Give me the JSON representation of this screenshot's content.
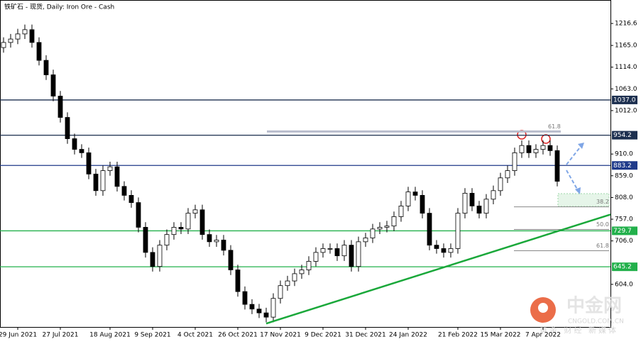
{
  "chart_data": {
    "type": "candlestick",
    "title": "铁矿石 - 现货, Daily:  Iron Ore - Cash",
    "ylim": [
      503.9,
      1271.7
    ],
    "yticks": [
      1216.6,
      {
        "value": 1165,
        "label": "1165.0"
      },
      {
        "value": 1114,
        "label": "1114.0"
      },
      {
        "value": 1063,
        "label": "1063.0"
      },
      {
        "value": 1012,
        "label": "1012.0"
      },
      {
        "value": 910,
        "label": "910.0"
      },
      {
        "value": 859,
        "label": "859.0"
      },
      {
        "value": 808,
        "label": "808.0"
      },
      {
        "value": 757,
        "label": "757.0"
      },
      {
        "value": 706,
        "label": "706.0"
      },
      {
        "value": 604,
        "label": "604.0"
      }
    ],
    "xticks": [
      {
        "value": 2,
        "label": "29 Jun 2021"
      },
      {
        "value": 8,
        "label": "27 Jul 2021"
      },
      {
        "value": 15,
        "label": "18 Aug 2021"
      },
      {
        "value": 21,
        "label": "9 Sep 2021"
      },
      {
        "value": 27,
        "label": "4 Oct 2021"
      },
      {
        "value": 33,
        "label": "26 Oct 2021"
      },
      {
        "value": 39,
        "label": "17 Nov 2021"
      },
      {
        "value": 45,
        "label": "9 Dec 2021"
      },
      {
        "value": 51,
        "label": "31 Dec 2021"
      },
      {
        "value": 57,
        "label": "24 Jan 2022"
      },
      {
        "value": 64,
        "label": "21 Feb 2022"
      },
      {
        "value": 70,
        "label": "15 Mar 2022"
      },
      {
        "value": 76,
        "label": "7 Apr 2022"
      }
    ],
    "open": [
      1160,
      1172,
      1180,
      1192,
      1202,
      1172,
      1130,
      1096,
      1046,
      996,
      946,
      921,
      913,
      863,
      824,
      871,
      880,
      834,
      813,
      796,
      738,
      679,
      646,
      696,
      721,
      738,
      734,
      771,
      779,
      721,
      704,
      708,
      684,
      638,
      587,
      557,
      546,
      537,
      527,
      571,
      601,
      612,
      629,
      638,
      658,
      679,
      688,
      688,
      671,
      696,
      646,
      704,
      713,
      734,
      738,
      741,
      763,
      788,
      821,
      813,
      771,
      696,
      688,
      679,
      688,
      771,
      818,
      788,
      771,
      804,
      824,
      854,
      871,
      913,
      930,
      913,
      921,
      930,
      918
    ],
    "high": [
      1184,
      1192,
      1204,
      1214,
      1214,
      1184,
      1142,
      1108,
      1058,
      1008,
      958,
      933,
      925,
      875,
      883,
      892,
      892,
      846,
      825,
      808,
      750,
      691,
      708,
      733,
      750,
      750,
      783,
      791,
      791,
      733,
      720,
      720,
      696,
      650,
      599,
      569,
      558,
      549,
      583,
      613,
      624,
      641,
      650,
      670,
      691,
      700,
      700,
      700,
      708,
      708,
      716,
      725,
      746,
      750,
      753,
      775,
      800,
      833,
      833,
      825,
      783,
      708,
      700,
      700,
      783,
      830,
      830,
      800,
      816,
      836,
      866,
      883,
      925,
      942,
      942,
      933,
      942,
      942,
      930
    ],
    "low": [
      1148,
      1160,
      1168,
      1180,
      1160,
      1118,
      1084,
      1034,
      984,
      934,
      909,
      901,
      851,
      812,
      812,
      859,
      822,
      801,
      784,
      726,
      667,
      634,
      634,
      684,
      709,
      722,
      722,
      759,
      709,
      692,
      692,
      672,
      626,
      575,
      545,
      534,
      525,
      515,
      515,
      559,
      589,
      600,
      617,
      626,
      646,
      667,
      676,
      659,
      659,
      634,
      634,
      692,
      701,
      722,
      726,
      729,
      751,
      776,
      801,
      759,
      684,
      676,
      667,
      667,
      676,
      759,
      776,
      759,
      759,
      792,
      812,
      842,
      859,
      901,
      901,
      901,
      909,
      906,
      834
    ],
    "close": [
      1172,
      1180,
      1192,
      1202,
      1172,
      1130,
      1096,
      1046,
      996,
      946,
      921,
      913,
      863,
      824,
      871,
      880,
      834,
      813,
      796,
      738,
      679,
      646,
      696,
      721,
      738,
      734,
      771,
      779,
      721,
      704,
      708,
      684,
      638,
      587,
      557,
      546,
      537,
      527,
      571,
      601,
      612,
      629,
      638,
      658,
      679,
      688,
      688,
      671,
      696,
      646,
      704,
      713,
      734,
      738,
      741,
      763,
      788,
      821,
      813,
      771,
      696,
      688,
      679,
      688,
      771,
      818,
      788,
      771,
      804,
      824,
      854,
      871,
      913,
      930,
      913,
      921,
      930,
      918,
      846
    ],
    "levels": [
      {
        "value": 1037,
        "label": "1037.0",
        "color": "#1c2f4f"
      },
      {
        "value": 954.2,
        "label": "954.2",
        "color": "#1c2f4f"
      },
      {
        "value": 883.2,
        "label": "883.2",
        "color": "#1f3a8a"
      },
      {
        "value": 729.7,
        "label": "729.7",
        "color": "#22b04b"
      },
      {
        "value": 645.2,
        "label": "645.2",
        "color": "#22b04b"
      }
    ],
    "fib": [
      {
        "label": "61.8",
        "price": 963
      },
      {
        "label": "38.2",
        "price": 786
      },
      {
        "label": "50.0",
        "price": 733
      },
      {
        "label": "61.8",
        "price": 683
      }
    ],
    "trendline": {
      "x": [
        37,
        85.5
      ],
      "y": [
        512,
        768
      ],
      "color": "#1aa83a"
    }
  },
  "watermark": {
    "name": "中金网",
    "site": "CNGOLD.COM.CN",
    "slogan": "黄金 财经 新媒体"
  }
}
